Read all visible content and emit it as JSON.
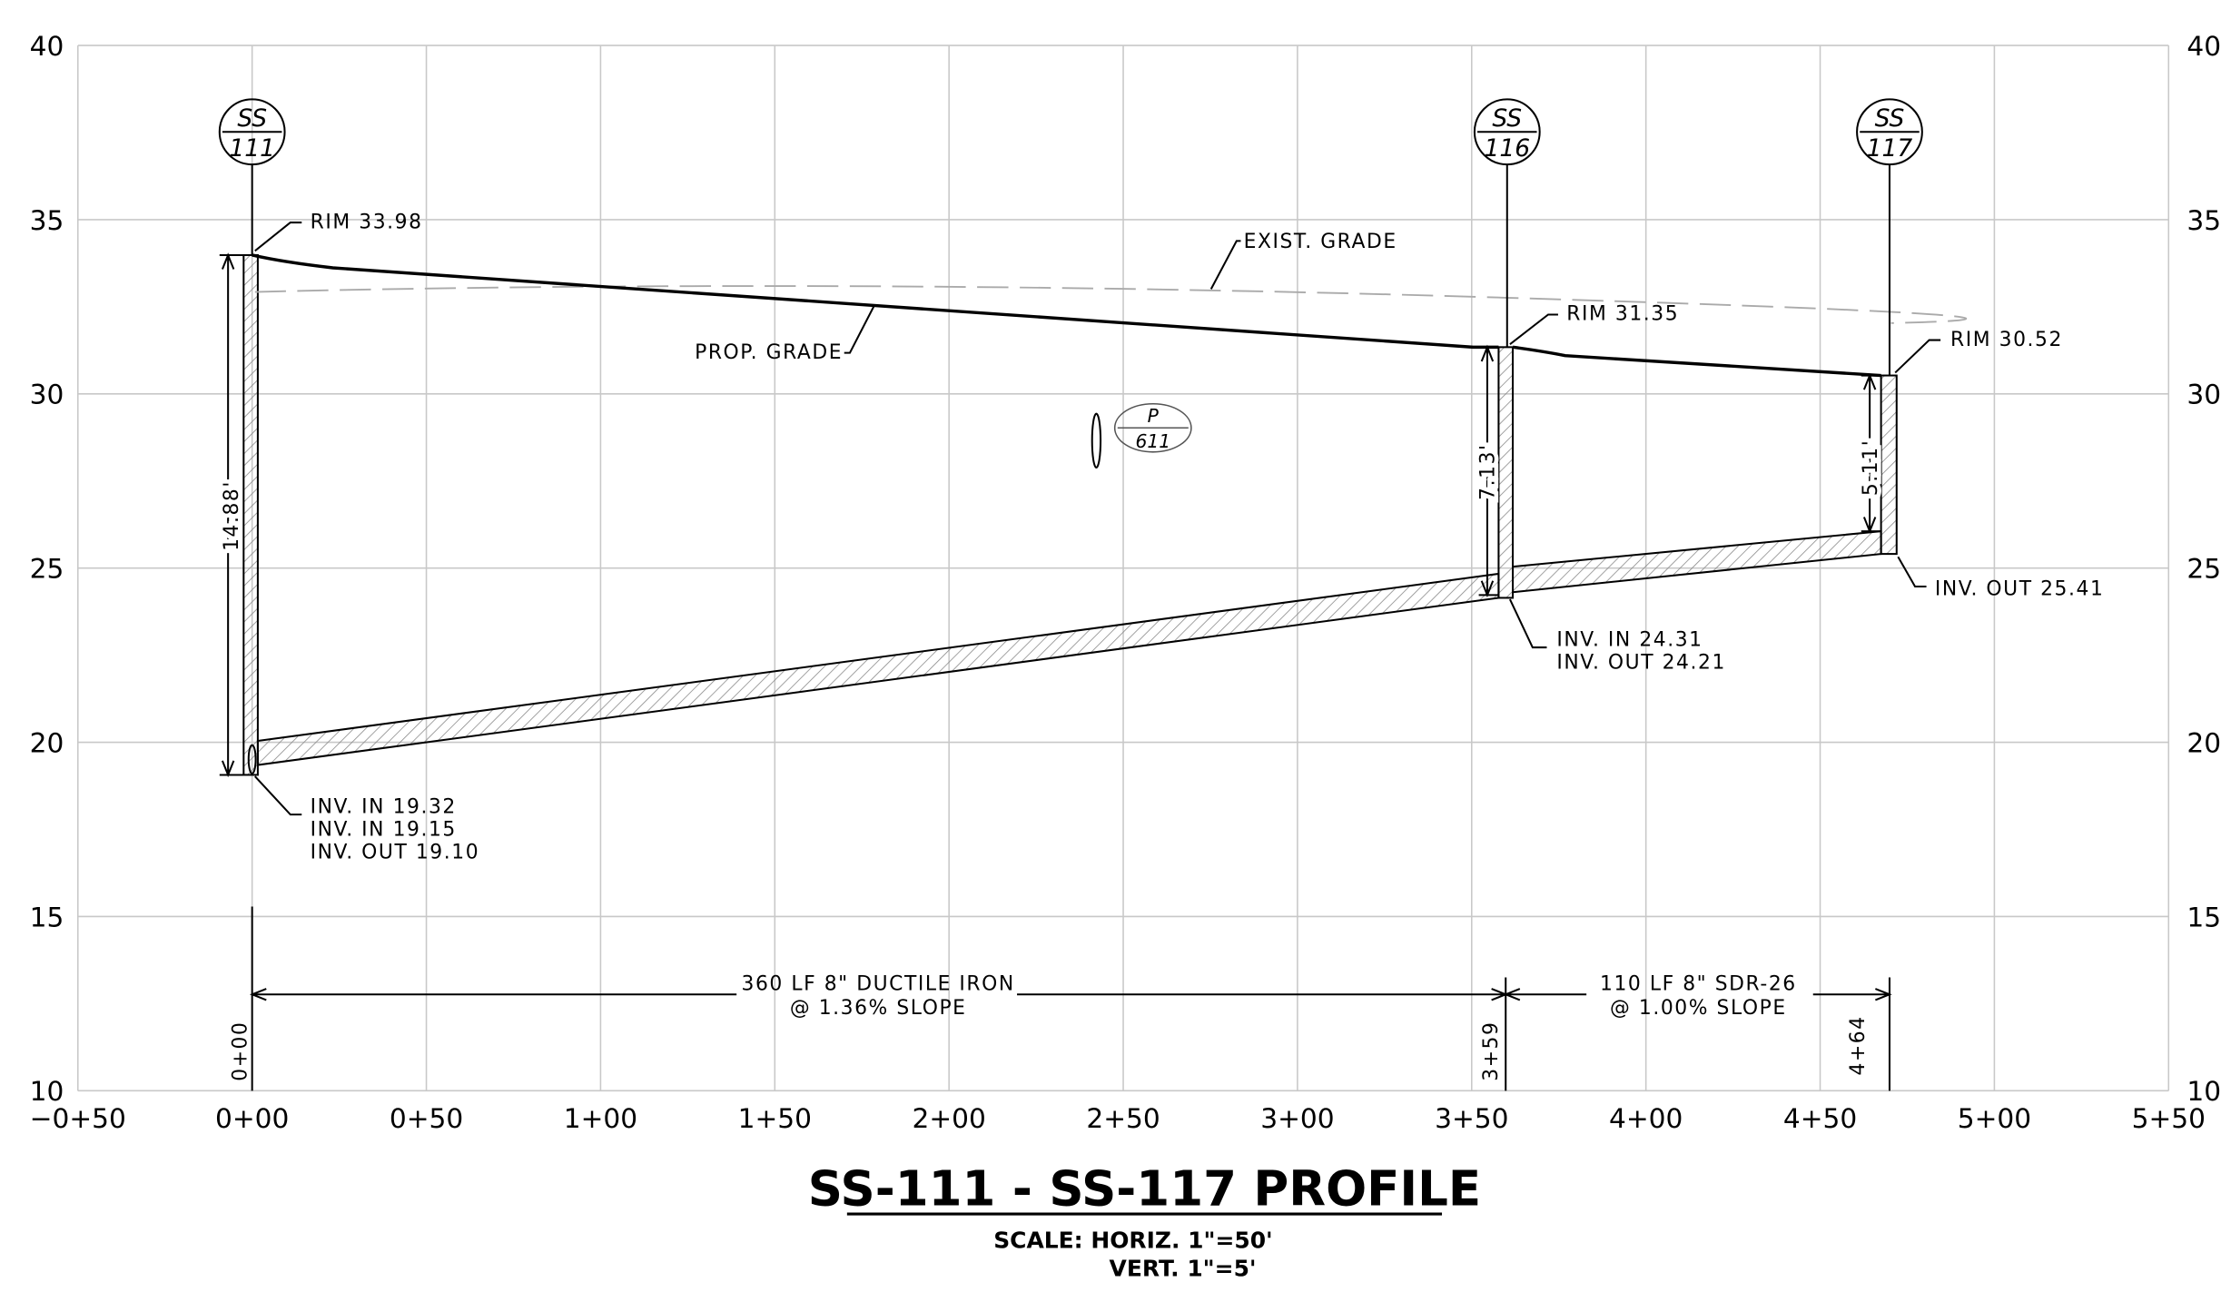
{
  "axes": {
    "yticks": [
      10,
      15,
      20,
      25,
      30,
      35,
      40
    ],
    "xticks": [
      "−0+50",
      "0+00",
      "0+50",
      "1+00",
      "1+50",
      "2+00",
      "2+50",
      "3+00",
      "3+50",
      "4+00",
      "4+50",
      "5+00",
      "5+50"
    ]
  },
  "structures": [
    {
      "top": "SS",
      "bottom": "111"
    },
    {
      "top": "SS",
      "bottom": "116"
    },
    {
      "top": "SS",
      "bottom": "117"
    }
  ],
  "callouts": {
    "rim111": "RIM 33.98",
    "inv111": [
      "INV. IN 19.32",
      "INV. IN 19.15",
      "INV. OUT 19.10"
    ],
    "rim116": "RIM 31.35",
    "inv116": [
      "INV. IN 24.31",
      "INV. OUT 24.21"
    ],
    "rim117": "RIM 30.52",
    "inv117": "INV. OUT 25.41",
    "exist": "EXIST. GRADE",
    "prop": "PROP. GRADE",
    "ref": {
      "top": "P",
      "bottom": "611"
    }
  },
  "depths": [
    "14.88'",
    "7.13'",
    "5.11'"
  ],
  "pipes": [
    {
      "line1": "360 LF 8\" DUCTILE IRON",
      "line2": "@ 1.36% SLOPE"
    },
    {
      "line1": "110 LF 8\" SDR-26",
      "line2": "@ 1.00% SLOPE"
    }
  ],
  "stations": [
    "0+00",
    "3+59",
    "4+64"
  ],
  "title": "SS-111 - SS-117 PROFILE",
  "scale": [
    "SCALE: HORIZ. 1\"=50'",
    "VERT. 1\"=5'"
  ]
}
